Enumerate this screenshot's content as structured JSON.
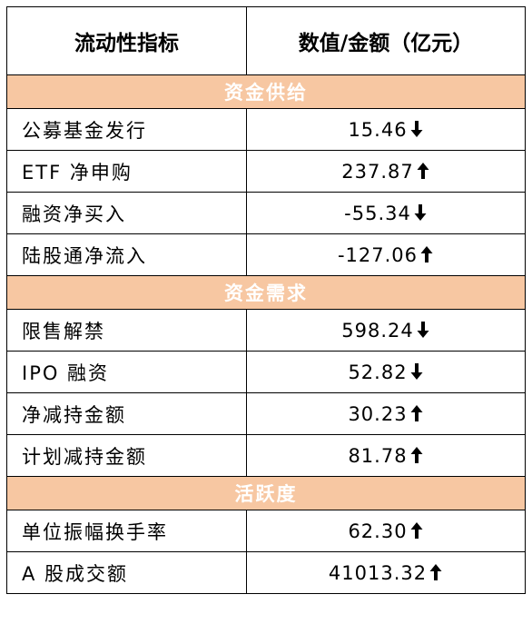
{
  "header": {
    "col1": "流动性指标",
    "col2": "数值/金额（亿元）"
  },
  "colors": {
    "section_bg": "#F7C7A2",
    "section_text": "#ffffff",
    "border": "#000000"
  },
  "sections": [
    {
      "title": "资金供给",
      "rows": [
        {
          "label": "公募基金发行",
          "value": "15.46",
          "trend": "down"
        },
        {
          "label": "ETF 净申购",
          "value": "237.87",
          "trend": "up"
        },
        {
          "label": "融资净买入",
          "value": "-55.34",
          "trend": "down"
        },
        {
          "label": "陆股通净流入",
          "value": "-127.06",
          "trend": "up"
        }
      ]
    },
    {
      "title": "资金需求",
      "rows": [
        {
          "label": "限售解禁",
          "value": "598.24",
          "trend": "down"
        },
        {
          "label": "IPO 融资",
          "value": "52.82",
          "trend": "down"
        },
        {
          "label": "净减持金额",
          "value": "30.23",
          "trend": "up"
        },
        {
          "label": "计划减持金额",
          "value": "81.78",
          "trend": "up"
        }
      ]
    },
    {
      "title": "活跃度",
      "rows": [
        {
          "label": "单位振幅换手率",
          "value": "62.30",
          "trend": "up"
        },
        {
          "label": "A 股成交额",
          "value": "41013.32",
          "trend": "up"
        }
      ]
    }
  ],
  "icons": {
    "up": "arrow-up-icon",
    "down": "arrow-down-icon"
  }
}
